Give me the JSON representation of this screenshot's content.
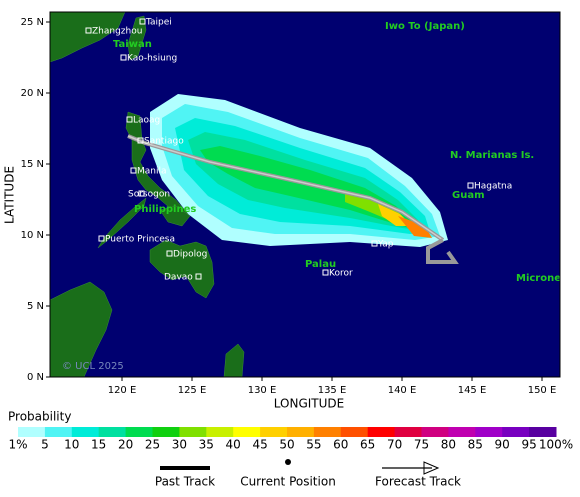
{
  "axes": {
    "y_title": "LATITUDE",
    "x_title": "LONGITUDE",
    "lat_ticks": [
      {
        "value": 0,
        "label": "0 N"
      },
      {
        "value": 5,
        "label": "5 N"
      },
      {
        "value": 10,
        "label": "10 N"
      },
      {
        "value": 15,
        "label": "15 N"
      },
      {
        "value": 20,
        "label": "20 N"
      },
      {
        "value": 25,
        "label": "25 N"
      }
    ],
    "lon_ticks": [
      {
        "value": 120,
        "label": "120 E"
      },
      {
        "value": 125,
        "label": "125 E"
      },
      {
        "value": 130,
        "label": "130 E"
      },
      {
        "value": 135,
        "label": "135 E"
      },
      {
        "value": 140,
        "label": "140 E"
      },
      {
        "value": 145,
        "label": "145 E"
      },
      {
        "value": 150,
        "label": "150 E"
      }
    ]
  },
  "places": [
    {
      "label": "Taipei"
    },
    {
      "label": "Zhangzhou"
    },
    {
      "label": "Taiwan"
    },
    {
      "label": "Kao-hsiung"
    },
    {
      "label": "Iwo To (Japan)"
    },
    {
      "label": "Laoag"
    },
    {
      "label": "Santiago"
    },
    {
      "label": "Manila"
    },
    {
      "label": "Sorsogon"
    },
    {
      "label": "Philippines"
    },
    {
      "label": "Puerto Princesa"
    },
    {
      "label": "Dipolog"
    },
    {
      "label": "Davao"
    },
    {
      "label": "N. Marianas Is."
    },
    {
      "label": "Hagatna"
    },
    {
      "label": "Guam"
    },
    {
      "label": "Yap"
    },
    {
      "label": "Palau"
    },
    {
      "label": "Koror"
    },
    {
      "label": "Microne"
    }
  ],
  "copyright": "© UCL 2025",
  "probability": {
    "title": "Probability",
    "labels": [
      "1%",
      "5",
      "10",
      "15",
      "20",
      "25",
      "30",
      "35",
      "40",
      "45",
      "50",
      "55",
      "60",
      "65",
      "70",
      "75",
      "80",
      "85",
      "90",
      "95",
      "100%"
    ],
    "colors": [
      "#b0ffff",
      "#50f4f4",
      "#00ecd8",
      "#00e0a0",
      "#00dc50",
      "#10d010",
      "#80e000",
      "#c8f000",
      "#ffff00",
      "#ffd000",
      "#ffb000",
      "#ff8000",
      "#ff5000",
      "#ff0000",
      "#e00040",
      "#d00080",
      "#c000b0",
      "#a000c8",
      "#7800c0",
      "#5800a0",
      "#400060"
    ]
  },
  "track_legend": {
    "past": "Past Track",
    "current": "Current Position",
    "forecast": "Forecast Track"
  }
}
